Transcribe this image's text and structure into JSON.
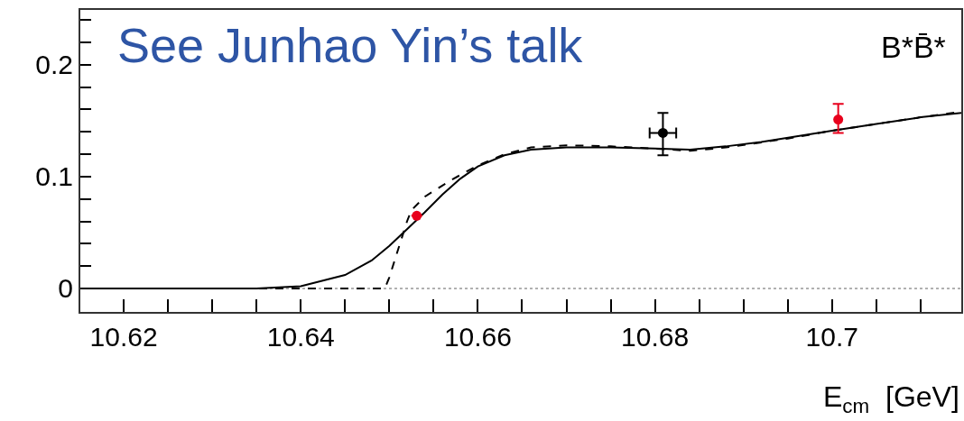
{
  "chart_data": {
    "type": "line",
    "xlabel": "E$_{cm}$  [GeV]",
    "annotations": [
      "See Junhao Yin’s talk",
      "B*B̄*"
    ],
    "xlim": [
      10.6151,
      10.7146
    ],
    "ylim": [
      -0.021,
      0.249
    ],
    "xticks": [
      10.62,
      {
        "value": 10.625,
        "label": null
      },
      {
        "value": 10.63,
        "label": null
      },
      {
        "value": 10.635,
        "label": null
      },
      10.64,
      {
        "value": 10.645,
        "label": null
      },
      {
        "value": 10.65,
        "label": null
      },
      {
        "value": 10.655,
        "label": null
      },
      10.66,
      {
        "value": 10.665,
        "label": null
      },
      {
        "value": 10.67,
        "label": null
      },
      {
        "value": 10.675,
        "label": null
      },
      10.68,
      {
        "value": 10.685,
        "label": null
      },
      {
        "value": 10.69,
        "label": null
      },
      {
        "value": 10.695,
        "label": null
      },
      {
        "value": 10.7,
        "label": "10.7"
      },
      {
        "value": 10.705,
        "label": null
      },
      {
        "value": 10.71,
        "label": null
      }
    ],
    "yticks": [
      0,
      {
        "value": 0.02,
        "label": null
      },
      {
        "value": 0.04,
        "label": null
      },
      {
        "value": 0.06,
        "label": null
      },
      {
        "value": 0.08,
        "label": null
      },
      0.1,
      {
        "value": 0.12,
        "label": null
      },
      {
        "value": 0.14,
        "label": null
      },
      {
        "value": 0.16,
        "label": null
      },
      {
        "value": 0.18,
        "label": null
      },
      0.2,
      {
        "value": 0.22,
        "label": null
      },
      {
        "value": 0.24,
        "label": null
      }
    ],
    "grid": false,
    "ref_lines": [
      {
        "axis": "y",
        "value": 0,
        "color": "#b0b0b0",
        "line_style": "dotted"
      }
    ],
    "series": [
      {
        "color": "#000000",
        "line_style": "solid",
        "marker": "none",
        "x": [
          10.6151,
          10.635,
          10.64,
          10.645,
          10.648,
          10.65,
          10.652,
          10.654,
          10.656,
          10.658,
          10.66,
          10.663,
          10.666,
          10.67,
          10.675,
          10.68,
          10.684,
          10.688,
          10.692,
          10.696,
          10.7,
          10.705,
          10.71,
          10.7146
        ],
        "values": [
          0,
          0,
          0.002,
          0.012,
          0.025,
          0.038,
          0.053,
          0.068,
          0.084,
          0.098,
          0.109,
          0.119,
          0.124,
          0.126,
          0.126,
          0.125,
          0.124,
          0.127,
          0.131,
          0.136,
          0.141,
          0.147,
          0.153,
          0.157
        ]
      },
      {
        "color": "#000000",
        "line_style": "dashed",
        "marker": "none",
        "x": [
          10.6151,
          10.6495,
          10.65,
          10.651,
          10.652,
          10.6525,
          10.654,
          10.657,
          10.66,
          10.663,
          10.666,
          10.67,
          10.675,
          10.68,
          10.684,
          10.688,
          10.695,
          10.7,
          10.71,
          10.7146
        ],
        "values": [
          0,
          0,
          0.01,
          0.035,
          0.06,
          0.07,
          0.082,
          0.097,
          0.11,
          0.12,
          0.126,
          0.128,
          0.127,
          0.125,
          0.123,
          0.126,
          0.134,
          0.141,
          0.153,
          0.158
        ]
      },
      {
        "type": "scatter",
        "color": "#e8001c",
        "marker": "circle",
        "x": [
          10.6531,
          10.7007
        ],
        "values": [
          0.065,
          0.151
        ],
        "errors": [
          null,
          [
            0.139,
            0.165
          ]
        ]
      },
      {
        "type": "scatter",
        "color": "#000000",
        "marker": "circle",
        "x": [
          10.6809
        ],
        "values": [
          0.139
        ],
        "errors": [
          [
            0.119,
            0.157
          ]
        ],
        "xerrors": [
          0.0015
        ]
      }
    ]
  }
}
